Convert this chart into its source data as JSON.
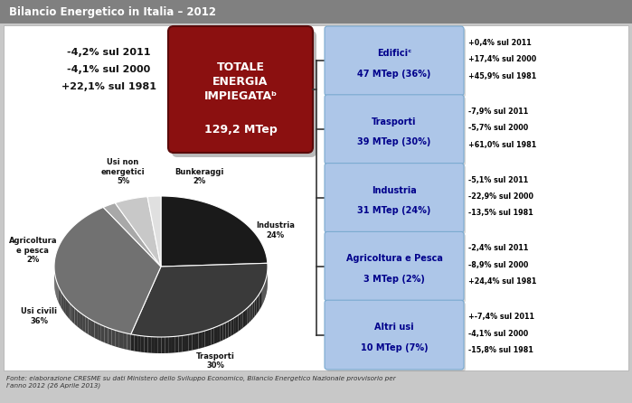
{
  "title": "Bilancio Energetico in Italia – 2012",
  "title_bg": "#808080",
  "content_bg": "#ffffff",
  "outer_bg": "#c8c8c8",
  "left_stats": [
    "-4,2% sul 2011",
    "-4,1% sul 2000",
    "+22,1% sul 1981"
  ],
  "pie_slices": [
    {
      "label": "Industria\n24%",
      "value": 24,
      "color": "#1a1a1a"
    },
    {
      "label": "Trasporti\n30%",
      "value": 30,
      "color": "#3a3a3a"
    },
    {
      "label": "Usi civili\n36%",
      "value": 36,
      "color": "#717171"
    },
    {
      "label": "Agricoltura\ne pesca\n2%",
      "value": 2,
      "color": "#a8a8a8"
    },
    {
      "label": "Usi non\nenergetici\n5%",
      "value": 5,
      "color": "#c8c8c8"
    },
    {
      "label": "Bunkeraggi\n2%",
      "value": 2,
      "color": "#e0e0e0"
    }
  ],
  "right_boxes": [
    {
      "title": "Edificiᶜ",
      "subtitle": "47 MTep (36%)",
      "stats": [
        "+0,4% sul 2011",
        "+17,4% sul 2000",
        "+45,9% sul 1981"
      ]
    },
    {
      "title": "Trasporti",
      "subtitle": "39 MTep (30%)",
      "stats": [
        "-7,9% sul 2011",
        "-5,7% sul 2000",
        "+61,0% sul 1981"
      ]
    },
    {
      "title": "Industria",
      "subtitle": "31 MTep (24%)",
      "stats": [
        "-5,1% sul 2011",
        "-22,9% sul 2000",
        "-13,5% sul 1981"
      ]
    },
    {
      "title": "Agricoltura e Pesca",
      "subtitle": "3 MTep (2%)",
      "stats": [
        "-2,4% sul 2011",
        "-8,9% sul 2000",
        "+24,4% sul 1981"
      ]
    },
    {
      "title": "Altri usi",
      "subtitle": "10 MTep (7%)",
      "stats": [
        "+-7,4% sul 2011",
        "-4,1% sul 2000",
        "-15,8% sul 1981"
      ]
    }
  ],
  "box_bg": "#adc6e8",
  "box_border": "#7aaad0",
  "box_text_color": "#00008b",
  "stats_text_color": "#000000",
  "footer": "Fonte: elaborazione CRESME su dati Ministero dello Sviluppo Economico, Bilancio Energetico Nazionale provvisorio per\nl'anno 2012 (26 Aprile 2013)",
  "red_box_bg": "#8b1010",
  "red_box_border": "#5a0a0a"
}
